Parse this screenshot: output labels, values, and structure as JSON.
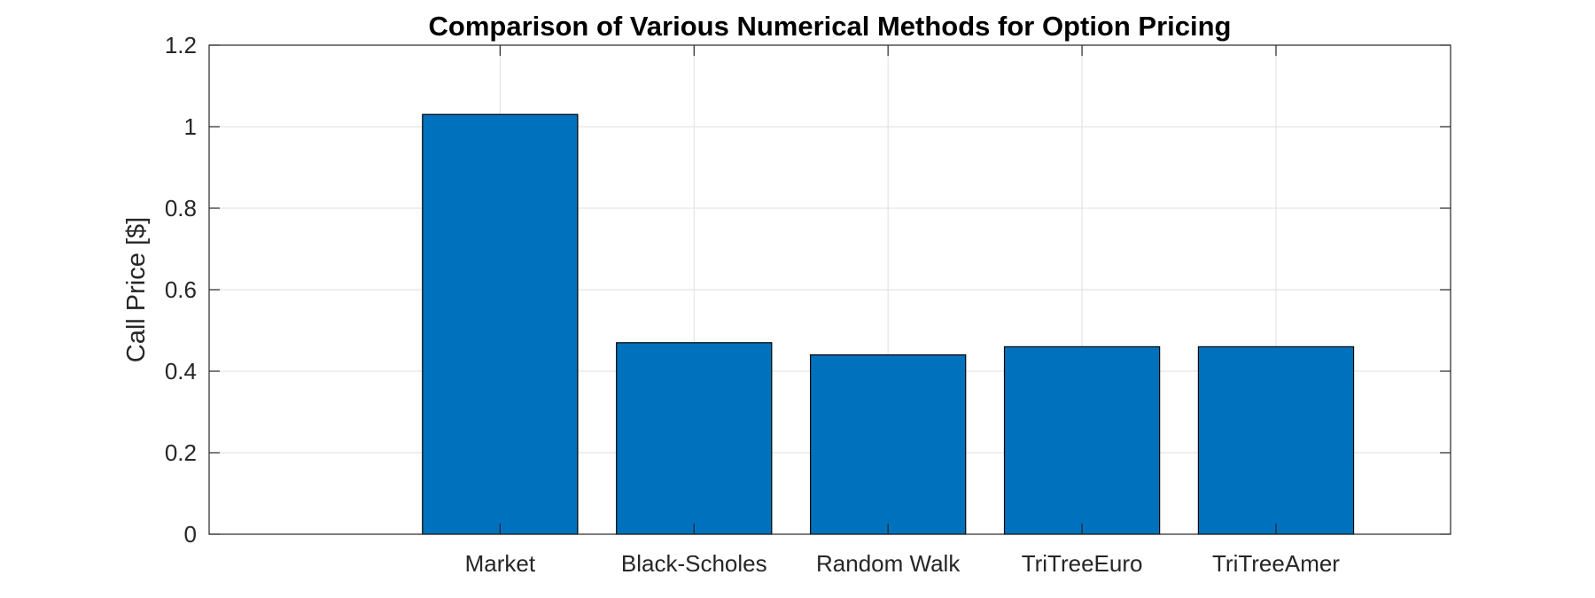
{
  "chart_data": {
    "type": "bar",
    "title": "Comparison of Various Numerical Methods for Option Pricing",
    "ylabel": "Call Price [$]",
    "xlabel": "",
    "categories": [
      "Market",
      "Black-Scholes",
      "Random Walk",
      "TriTreeEuro",
      "TriTreeAmer"
    ],
    "values": [
      1.03,
      0.47,
      0.44,
      0.46,
      0.46
    ],
    "ylim": [
      0,
      1.2
    ],
    "xlim": [
      -0.5,
      5.9
    ],
    "yticks": [
      0,
      0.2,
      0.4,
      0.6,
      0.8,
      1,
      1.2
    ],
    "ytick_labels": [
      "0",
      "0.2",
      "0.4",
      "0.6",
      "0.8",
      "1",
      "1.2"
    ],
    "grid": true,
    "bar_color": "#0072BD"
  }
}
